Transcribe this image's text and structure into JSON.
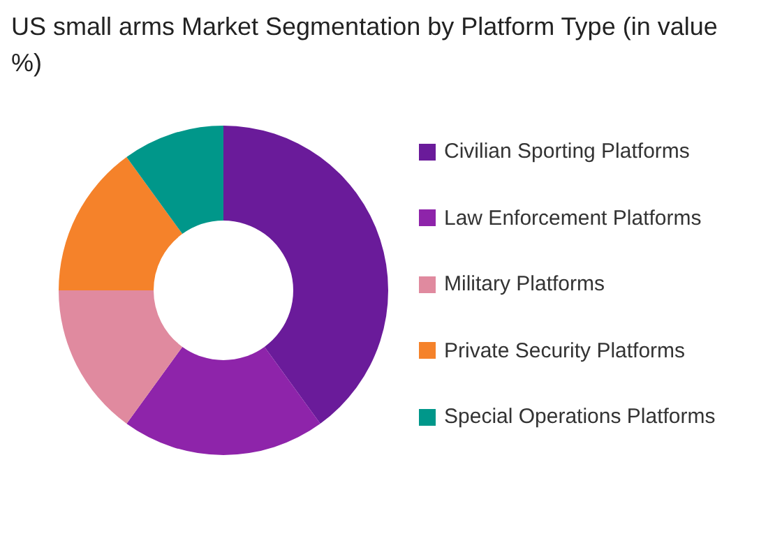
{
  "chart_data": {
    "type": "donut",
    "title": "US small arms Market Segmentation by Platform Type (in value %)",
    "categories": [
      "Civilian Sporting Platforms",
      "Law Enforcement Platforms",
      "Military Platforms",
      "Private Security Platforms",
      "Special Operations Platforms"
    ],
    "values": [
      40,
      20,
      15,
      15,
      10
    ],
    "colors": [
      "#6a1b9a",
      "#8e24aa",
      "#e08a9f",
      "#f5822a",
      "#00978a"
    ],
    "legend": "right"
  }
}
